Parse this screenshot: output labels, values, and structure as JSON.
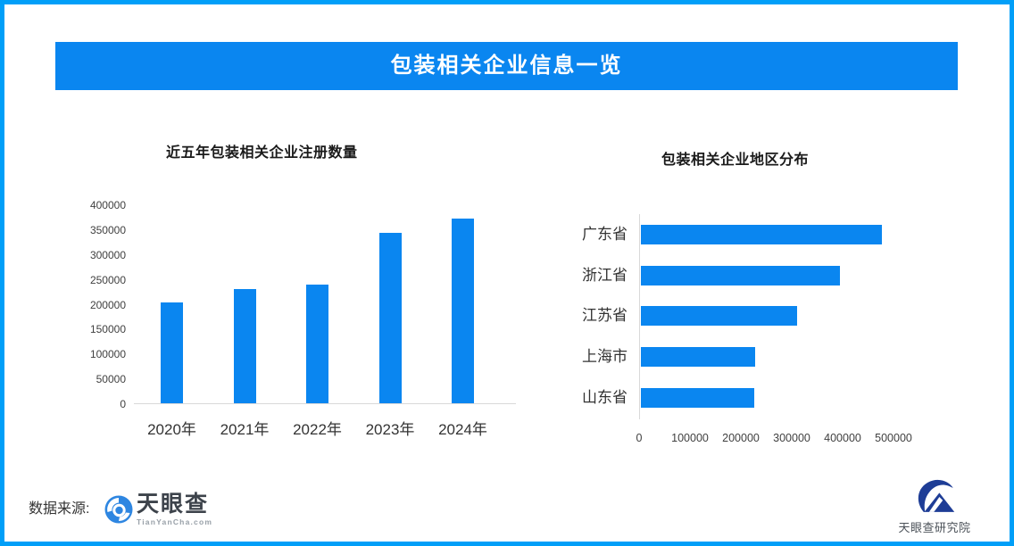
{
  "page": {
    "banner_title": "包装相关企业信息一览",
    "colors": {
      "frame_border": "#019ff8",
      "banner_background": "#0a86f0",
      "bar_fill": "#0a86f0",
      "axis_line": "#d9d9d9"
    }
  },
  "chart_data": [
    {
      "type": "bar",
      "title": "近五年包装相关企业注册数量",
      "categories": [
        "2020年",
        "2021年",
        "2022年",
        "2023年",
        "2024年"
      ],
      "values": [
        203000,
        230000,
        238000,
        342000,
        371000
      ],
      "xlabel": "",
      "ylabel": "",
      "ylim": [
        0,
        400000
      ],
      "yticks": [
        "0",
        "50000",
        "100000",
        "150000",
        "200000",
        "250000",
        "300000",
        "350000",
        "400000"
      ],
      "grid": false,
      "legend": "none",
      "bar_color": "#0a86f0"
    },
    {
      "type": "bar-horizontal",
      "title": "包装相关企业地区分布",
      "categories": [
        "广东省",
        "浙江省",
        "江苏省",
        "上海市",
        "山东省"
      ],
      "values": [
        474000,
        392000,
        307000,
        225000,
        223000
      ],
      "xlabel": "",
      "ylabel": "",
      "xlim": [
        0,
        500000
      ],
      "xticks": [
        "0",
        "100000",
        "200000",
        "300000",
        "400000",
        "500000"
      ],
      "grid": false,
      "legend": "none",
      "bar_color": "#0a86f0"
    }
  ],
  "footer": {
    "source_label": "数据来源:",
    "tianyancha_name": "天眼查",
    "tianyancha_sub": "TianYanCha.com",
    "research_name": "天眼查研究院"
  }
}
